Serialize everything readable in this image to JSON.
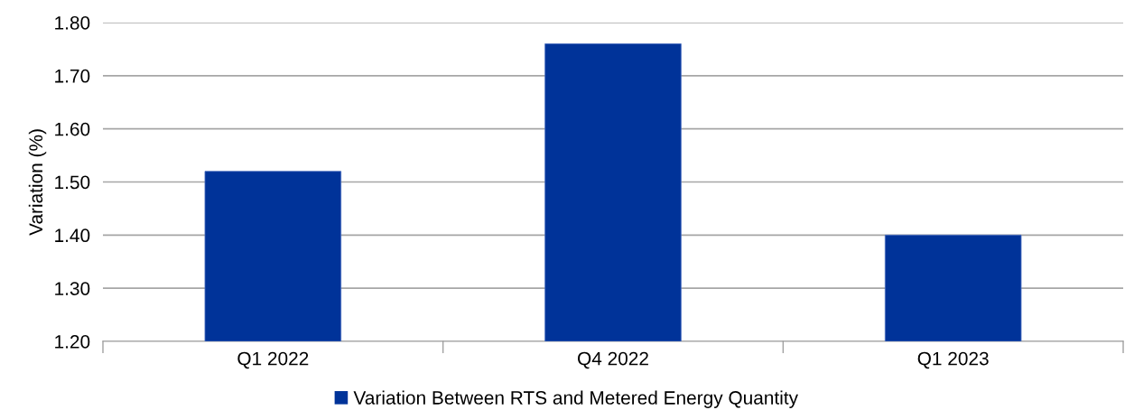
{
  "chart_data": {
    "type": "bar",
    "ylabel": "Variation (%)",
    "categories": [
      "Q1 2022",
      "Q4 2022",
      "Q1 2023"
    ],
    "series": [
      {
        "name": "Variation Between RTS and Metered Energy Quantity",
        "color": "#003399",
        "values": [
          1.52,
          1.76,
          1.4
        ]
      }
    ],
    "ylim": [
      1.2,
      1.8
    ],
    "yticks": [
      {
        "value": 1.2,
        "label": "1.20"
      },
      {
        "value": 1.3,
        "label": "1.30"
      },
      {
        "value": 1.4,
        "label": "1.40"
      },
      {
        "value": 1.5,
        "label": "1.50"
      },
      {
        "value": 1.6,
        "label": "1.60"
      },
      {
        "value": 1.7,
        "label": "1.70"
      },
      {
        "value": 1.8,
        "label": "1.80"
      }
    ],
    "grid": "y",
    "legend": "bottom"
  }
}
